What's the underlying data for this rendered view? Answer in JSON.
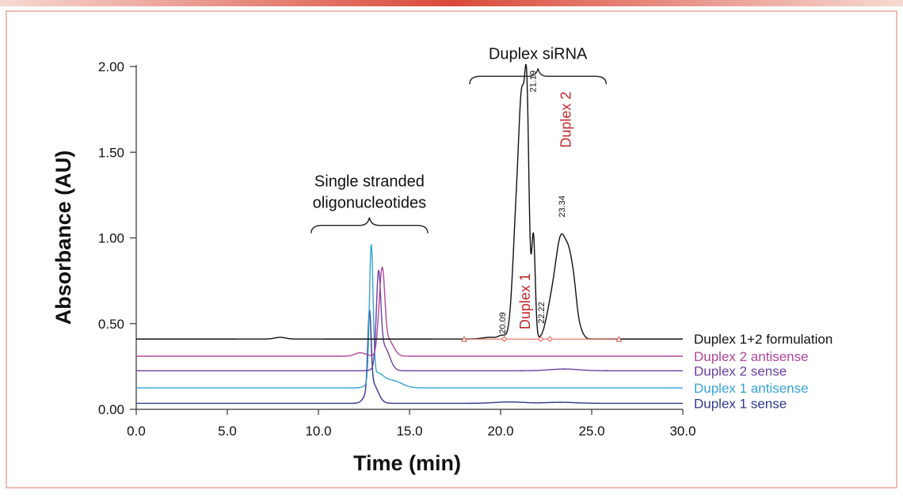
{
  "chart_data": {
    "type": "line",
    "title": "",
    "xlabel": "Time (min)",
    "ylabel": "Absorbance (AU)",
    "xlim": [
      0,
      30
    ],
    "ylim": [
      0,
      2
    ],
    "x_ticks": [
      "0.0",
      "5.0",
      "10.0",
      "15.0",
      "20.0",
      "25.0",
      "30.0"
    ],
    "x_tick_values": [
      0,
      5,
      10,
      15,
      20,
      25,
      30
    ],
    "y_ticks": [
      "0.00",
      "0.50",
      "1.00",
      "1.50",
      "2.00"
    ],
    "y_tick_values": [
      0,
      0.5,
      1,
      1.5,
      2
    ],
    "series": [
      {
        "name": "Duplex 1 sense",
        "color": "#2e3a8c",
        "baseline": 0.035,
        "peaks": [
          [
            12.8,
            0.44,
            0.09
          ],
          [
            12.95,
            0.12,
            0.3
          ],
          [
            20.5,
            0.008,
            0.8
          ],
          [
            23.3,
            0.006,
            0.8
          ]
        ]
      },
      {
        "name": "Duplex 1 antisense",
        "color": "#36a3d6",
        "baseline": 0.125,
        "peaks": [
          [
            12.9,
            0.78,
            0.1
          ],
          [
            13.2,
            0.08,
            0.35
          ],
          [
            13.9,
            0.03,
            0.4
          ],
          [
            14.4,
            0.02,
            0.4
          ]
        ]
      },
      {
        "name": "Duplex 2 sense",
        "color": "#6b3fa0",
        "baseline": 0.225,
        "peaks": [
          [
            13.3,
            0.5,
            0.12
          ],
          [
            13.6,
            0.14,
            0.3
          ],
          [
            23.5,
            0.01,
            0.8
          ]
        ]
      },
      {
        "name": "Duplex 2 antisense",
        "color": "#b0479a",
        "baseline": 0.31,
        "peaks": [
          [
            12.3,
            0.02,
            0.3
          ],
          [
            13.4,
            0.26,
            0.14
          ],
          [
            13.55,
            0.28,
            0.12
          ],
          [
            13.8,
            0.1,
            0.3
          ]
        ]
      },
      {
        "name": "Duplex 1+2 formulation",
        "color": "#111111",
        "baseline": 0.41,
        "peaks": [
          [
            7.9,
            0.01,
            0.3
          ],
          [
            19.4,
            0.01,
            0.4
          ],
          [
            20.09,
            0.02,
            0.2
          ],
          [
            20.9,
            0.75,
            0.22
          ],
          [
            21.19,
            1.05,
            0.16
          ],
          [
            21.45,
            1.2,
            0.12
          ],
          [
            21.8,
            0.6,
            0.1
          ],
          [
            22.7,
            0.12,
            0.25
          ],
          [
            23.34,
            0.6,
            0.35
          ],
          [
            23.8,
            0.22,
            0.18
          ],
          [
            24.05,
            0.16,
            0.15
          ],
          [
            24.3,
            0.06,
            0.2
          ]
        ]
      }
    ],
    "peak_labels": [
      {
        "text": "20.09",
        "x": 20.09,
        "y": 0.44
      },
      {
        "text": "21.19",
        "x": 21.75,
        "y": 1.85
      },
      {
        "text": "22.22",
        "x": 22.22,
        "y": 0.5
      },
      {
        "text": "23.34",
        "x": 23.34,
        "y": 1.12
      }
    ],
    "peak_markers": [
      20.2,
      22.2,
      22.7
    ],
    "marker_triangles": [
      18.0,
      26.5
    ],
    "annotations": [
      {
        "text": "Duplex 1",
        "x": 21.3,
        "y": 0.63,
        "rotate": -90,
        "color": "#c0272d"
      },
      {
        "text": "Duplex 2",
        "x": 23.55,
        "y": 1.69,
        "rotate": -90,
        "color": "#c0272d"
      }
    ],
    "brackets": [
      {
        "lines": [
          "Duplex siRNA"
        ],
        "x_start": 18.3,
        "x_end": 25.8,
        "y": 1.98
      },
      {
        "lines": [
          "Single stranded",
          "oligonucleotides"
        ],
        "x_start": 9.6,
        "x_end": 16.0,
        "y": 1.11
      }
    ],
    "legend": "right"
  }
}
